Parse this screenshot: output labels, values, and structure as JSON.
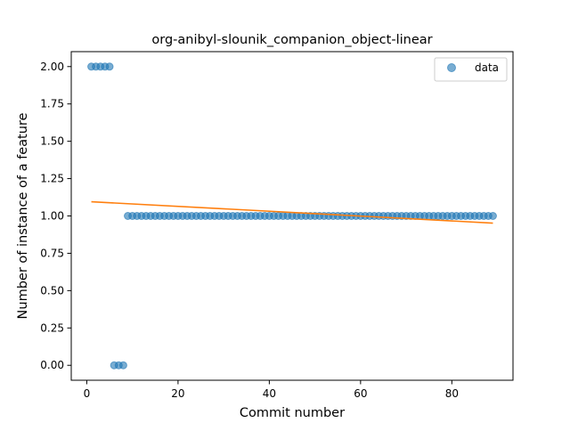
{
  "chart_data": {
    "type": "scatter",
    "title": "org-anibyl-slounik_companion_object-linear",
    "xlabel": "Commit number",
    "ylabel": "Number of instance of a feature",
    "xlim": [
      -3.4,
      93.4
    ],
    "ylim": [
      -0.1,
      2.1
    ],
    "xticks": [
      0,
      20,
      40,
      60,
      80
    ],
    "xtick_labels": [
      "0",
      "20",
      "40",
      "60",
      "80"
    ],
    "yticks": [
      0.0,
      0.25,
      0.5,
      0.75,
      1.0,
      1.25,
      1.5,
      1.75,
      2.0
    ],
    "ytick_labels": [
      "0.00",
      "0.25",
      "0.50",
      "0.75",
      "1.00",
      "1.25",
      "1.50",
      "1.75",
      "2.00"
    ],
    "grid": false,
    "legend": {
      "position": "top-right",
      "entries": [
        "data"
      ]
    },
    "series": [
      {
        "name": "data",
        "kind": "scatter",
        "color": "#1f77b4",
        "points": [
          [
            1,
            2
          ],
          [
            2,
            2
          ],
          [
            3,
            2
          ],
          [
            4,
            2
          ],
          [
            5,
            2
          ],
          [
            6,
            0
          ],
          [
            7,
            0
          ],
          [
            8,
            0
          ],
          [
            9,
            1
          ],
          [
            10,
            1
          ],
          [
            11,
            1
          ],
          [
            12,
            1
          ],
          [
            13,
            1
          ],
          [
            14,
            1
          ],
          [
            15,
            1
          ],
          [
            16,
            1
          ],
          [
            17,
            1
          ],
          [
            18,
            1
          ],
          [
            19,
            1
          ],
          [
            20,
            1
          ],
          [
            21,
            1
          ],
          [
            22,
            1
          ],
          [
            23,
            1
          ],
          [
            24,
            1
          ],
          [
            25,
            1
          ],
          [
            26,
            1
          ],
          [
            27,
            1
          ],
          [
            28,
            1
          ],
          [
            29,
            1
          ],
          [
            30,
            1
          ],
          [
            31,
            1
          ],
          [
            32,
            1
          ],
          [
            33,
            1
          ],
          [
            34,
            1
          ],
          [
            35,
            1
          ],
          [
            36,
            1
          ],
          [
            37,
            1
          ],
          [
            38,
            1
          ],
          [
            39,
            1
          ],
          [
            40,
            1
          ],
          [
            41,
            1
          ],
          [
            42,
            1
          ],
          [
            43,
            1
          ],
          [
            44,
            1
          ],
          [
            45,
            1
          ],
          [
            46,
            1
          ],
          [
            47,
            1
          ],
          [
            48,
            1
          ],
          [
            49,
            1
          ],
          [
            50,
            1
          ],
          [
            51,
            1
          ],
          [
            52,
            1
          ],
          [
            53,
            1
          ],
          [
            54,
            1
          ],
          [
            55,
            1
          ],
          [
            56,
            1
          ],
          [
            57,
            1
          ],
          [
            58,
            1
          ],
          [
            59,
            1
          ],
          [
            60,
            1
          ],
          [
            61,
            1
          ],
          [
            62,
            1
          ],
          [
            63,
            1
          ],
          [
            64,
            1
          ],
          [
            65,
            1
          ],
          [
            66,
            1
          ],
          [
            67,
            1
          ],
          [
            68,
            1
          ],
          [
            69,
            1
          ],
          [
            70,
            1
          ],
          [
            71,
            1
          ],
          [
            72,
            1
          ],
          [
            73,
            1
          ],
          [
            74,
            1
          ],
          [
            75,
            1
          ],
          [
            76,
            1
          ],
          [
            77,
            1
          ],
          [
            78,
            1
          ],
          [
            79,
            1
          ],
          [
            80,
            1
          ],
          [
            81,
            1
          ],
          [
            82,
            1
          ],
          [
            83,
            1
          ],
          [
            84,
            1
          ],
          [
            85,
            1
          ],
          [
            86,
            1
          ],
          [
            87,
            1
          ],
          [
            88,
            1
          ],
          [
            89,
            1
          ]
        ]
      },
      {
        "kind": "line",
        "color": "#ff7f0e",
        "points": [
          [
            1,
            1.095
          ],
          [
            89,
            0.952
          ]
        ]
      }
    ]
  }
}
